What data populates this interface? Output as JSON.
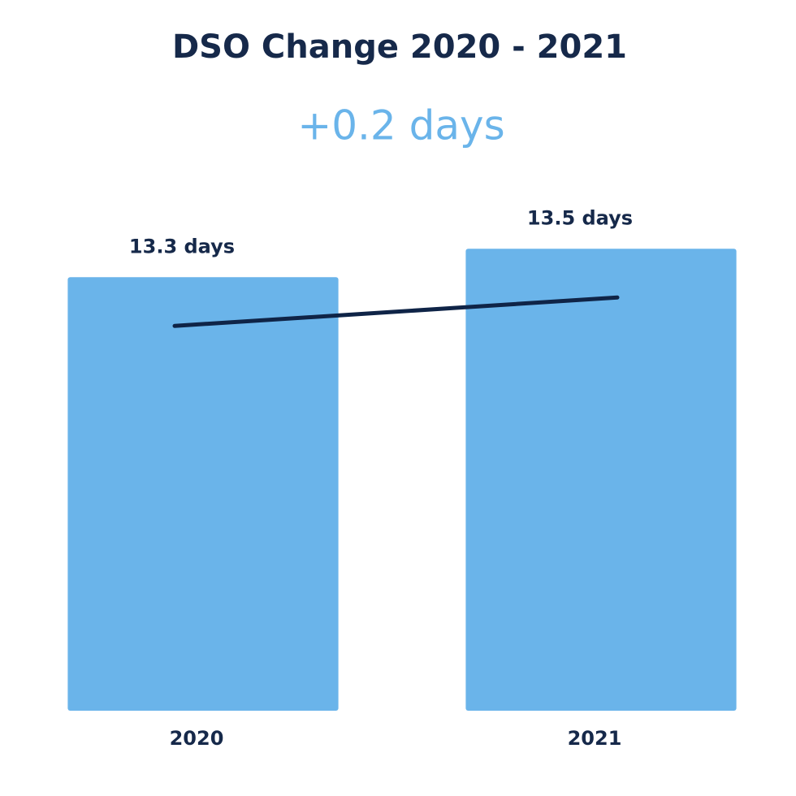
{
  "chart_data": {
    "type": "bar",
    "title": "DSO Change 2020 - 2021",
    "subtitle": "+0.2 days",
    "categories": [
      "2020",
      "2021"
    ],
    "values": [
      13.3,
      13.5
    ],
    "value_labels": [
      "13.3 days",
      "13.5 days"
    ],
    "color": "#6ab4ea",
    "ylim": [
      10.25,
      13.75
    ],
    "trend_line": {
      "color": "#0f2447"
    }
  }
}
